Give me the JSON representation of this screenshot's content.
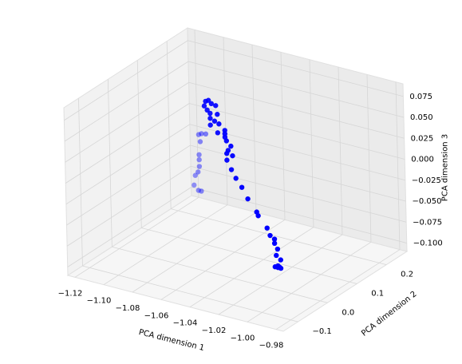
{
  "chart_data": {
    "type": "scatter3d",
    "x": [
      -1.074,
      -1.072,
      -1.07,
      -1.067,
      -1.075,
      -1.073,
      -1.071,
      -1.066,
      -1.071,
      -1.068,
      -1.065,
      -1.071,
      -1.061,
      -1.061,
      -1.066,
      -1.061,
      -1.06,
      -1.057,
      -1.059,
      -1.056,
      -1.06,
      -1.06,
      -1.057,
      -1.054,
      -1.05,
      -1.046,
      -1.04,
      -1.039,
      -1.033,
      -1.031,
      -1.028,
      -1.028,
      -1.026,
      -1.027,
      -1.024,
      -1.026,
      -1.025,
      -1.024,
      -1.026,
      -1.028,
      -1.097,
      -1.095,
      -1.092,
      -1.096,
      -1.097,
      -1.097,
      -1.097,
      -1.098,
      -1.1,
      -1.101,
      -1.098,
      -1.096
    ],
    "y": [
      0.081,
      0.081,
      0.081,
      0.081,
      0.081,
      0.081,
      0.081,
      0.081,
      0.081,
      0.081,
      0.081,
      0.081,
      0.081,
      0.081,
      0.081,
      0.081,
      0.081,
      0.081,
      0.081,
      0.081,
      0.081,
      0.081,
      0.081,
      0.081,
      0.081,
      0.081,
      0.081,
      0.081,
      0.081,
      0.081,
      0.081,
      0.081,
      0.081,
      0.081,
      0.081,
      0.081,
      0.081,
      0.081,
      0.081,
      0.081,
      0.165,
      0.165,
      0.165,
      0.165,
      0.165,
      0.165,
      0.165,
      0.165,
      0.165,
      0.165,
      0.165,
      0.165
    ],
    "z": [
      0.068,
      0.07,
      0.067,
      0.066,
      0.062,
      0.058,
      0.055,
      0.056,
      0.049,
      0.047,
      0.045,
      0.041,
      0.039,
      0.035,
      0.034,
      0.031,
      0.027,
      0.022,
      0.016,
      0.011,
      0.012,
      0.004,
      -0.006,
      -0.015,
      -0.024,
      -0.036,
      -0.049,
      -0.053,
      -0.065,
      -0.073,
      -0.076,
      -0.081,
      -0.087,
      -0.095,
      -0.099,
      -0.107,
      -0.108,
      -0.109,
      -0.109,
      -0.109,
      -0.001,
      0.001,
      0.002,
      -0.009,
      -0.025,
      -0.031,
      -0.039,
      -0.046,
      -0.051,
      -0.063,
      -0.068,
      -0.068
    ],
    "color": "#0000ff",
    "depthshade": true,
    "grid": true,
    "xlabel": "PCA dimension 1",
    "ylabel": "PCA dimension 2",
    "zlabel": "PCA dimension 3",
    "xlim": [
      -1.125,
      -0.975
    ],
    "ylim": [
      -0.15,
      0.27
    ],
    "zlim": [
      -0.11,
      0.09
    ],
    "xticks": [
      {
        "value": -1.12,
        "label": "−1.12"
      },
      {
        "value": -1.1,
        "label": "−1.10"
      },
      {
        "value": -1.08,
        "label": "−1.08"
      },
      {
        "value": -1.06,
        "label": "−1.06"
      },
      {
        "value": -1.04,
        "label": "−1.04"
      },
      {
        "value": -1.02,
        "label": "−1.02"
      },
      {
        "value": -1.0,
        "label": "−1.00"
      },
      {
        "value": -0.98,
        "label": "−0.98"
      }
    ],
    "yticks": [
      {
        "value": -0.1,
        "label": "−0.1"
      },
      {
        "value": 0,
        "label": "0.0"
      },
      0.1,
      0.2
    ],
    "zticks": [
      {
        "value": 0.075,
        "label": "0.075"
      },
      {
        "value": 0.05,
        "label": "0.050"
      },
      {
        "value": 0.025,
        "label": "0.025"
      },
      {
        "value": 0,
        "label": "0.000"
      },
      {
        "value": -0.025,
        "label": "−0.025"
      },
      {
        "value": -0.05,
        "label": "−0.050"
      },
      {
        "value": -0.075,
        "label": "−0.075"
      },
      {
        "value": -0.1,
        "label": "−0.100"
      }
    ]
  }
}
